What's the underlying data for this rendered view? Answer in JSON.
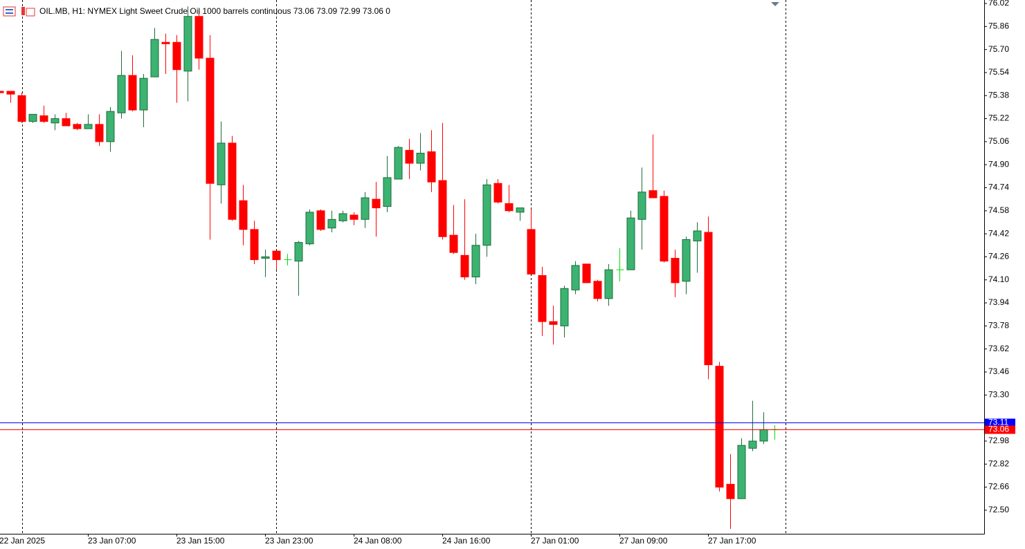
{
  "chart_data": {
    "type": "candlestick",
    "title": "OIL.MB, H1:  NYMEX Light Sweet Crude Oil 1000 barrels continuous  73.06 73.09 72.99 73.06  0",
    "categories": [
      "22 Jan 2025",
      null,
      null,
      null,
      null,
      null,
      null,
      null,
      "23 Jan 07:00",
      null,
      null,
      null,
      null,
      null,
      null,
      null,
      "23 Jan 15:00",
      null,
      null,
      null,
      null,
      null,
      null,
      null,
      "23 Jan 23:00",
      null,
      null,
      null,
      null,
      null,
      null,
      null,
      "24 Jan 08:00",
      null,
      null,
      null,
      null,
      null,
      null,
      null,
      "24 Jan 16:00",
      null,
      null,
      null,
      null,
      null,
      null,
      null,
      "27 Jan 01:00",
      null,
      null,
      null,
      null,
      null,
      null,
      null,
      "27 Jan 09:00",
      null,
      null,
      null,
      null,
      null,
      null,
      null,
      "27 Jan 17:00",
      null,
      null,
      null,
      null,
      null,
      null
    ],
    "open": [
      75.41,
      75.41,
      75.38,
      75.2,
      75.24,
      75.19,
      75.22,
      75.18,
      75.15,
      75.18,
      75.06,
      75.26,
      75.52,
      75.28,
      75.51,
      75.75,
      75.75,
      75.55,
      75.93,
      75.64,
      74.76,
      75.05,
      74.65,
      74.45,
      74.25,
      74.3,
      74.24,
      74.23,
      74.35,
      74.58,
      74.46,
      74.51,
      74.55,
      74.52,
      74.66,
      74.61,
      74.8,
      75.0,
      74.91,
      74.99,
      74.79,
      74.41,
      74.27,
      74.12,
      74.34,
      74.77,
      74.63,
      74.57,
      74.45,
      74.13,
      73.81,
      73.78,
      74.03,
      74.21,
      74.09,
      73.97,
      74.17,
      74.17,
      74.52,
      74.72,
      74.68,
      74.25,
      74.09,
      74.37,
      74.43,
      73.5,
      72.68,
      72.58,
      72.93,
      72.98,
      73.06
    ],
    "high": [
      75.41,
      75.41,
      75.4,
      75.25,
      75.31,
      75.25,
      75.26,
      75.19,
      75.25,
      75.25,
      75.3,
      75.69,
      75.66,
      75.53,
      75.85,
      75.81,
      75.8,
      76.0,
      75.97,
      75.8,
      75.2,
      75.1,
      74.76,
      74.51,
      74.31,
      74.3,
      74.28,
      74.37,
      74.59,
      74.59,
      74.58,
      74.58,
      74.57,
      74.71,
      74.78,
      74.96,
      75.03,
      75.08,
      75.12,
      75.14,
      75.19,
      74.62,
      74.66,
      74.42,
      74.8,
      74.8,
      74.76,
      74.6,
      74.59,
      74.19,
      73.92,
      74.06,
      74.23,
      74.21,
      74.1,
      74.21,
      74.32,
      74.58,
      74.88,
      75.11,
      74.72,
      74.31,
      74.4,
      74.5,
      74.54,
      73.53,
      72.89,
      73.0,
      73.26,
      73.18,
      73.09
    ],
    "low": [
      75.4,
      75.33,
      75.19,
      75.19,
      75.19,
      75.14,
      75.17,
      75.14,
      75.15,
      75.03,
      74.99,
      75.22,
      75.27,
      75.16,
      75.51,
      75.53,
      75.33,
      75.34,
      75.56,
      74.38,
      74.63,
      74.51,
      74.34,
      74.21,
      74.12,
      74.17,
      74.2,
      73.99,
      74.34,
      74.44,
      74.43,
      74.5,
      74.48,
      74.46,
      74.4,
      74.57,
      74.8,
      74.8,
      74.86,
      74.71,
      74.38,
      74.28,
      74.1,
      74.07,
      74.26,
      74.63,
      74.57,
      74.51,
      74.14,
      73.71,
      73.65,
      73.7,
      74.0,
      74.08,
      73.95,
      73.92,
      74.09,
      74.17,
      74.31,
      74.67,
      74.22,
      73.98,
      74.0,
      74.15,
      73.41,
      72.63,
      72.37,
      72.58,
      72.91,
      72.96,
      72.99
    ],
    "close": [
      75.4,
      75.39,
      75.2,
      75.25,
      75.2,
      75.22,
      75.17,
      75.15,
      75.18,
      75.06,
      75.27,
      75.52,
      75.28,
      75.5,
      75.77,
      75.74,
      75.56,
      75.93,
      75.64,
      74.77,
      75.05,
      74.52,
      74.45,
      74.24,
      74.26,
      74.24,
      74.24,
      74.36,
      74.57,
      74.45,
      74.52,
      74.56,
      74.52,
      74.67,
      74.6,
      74.81,
      75.02,
      74.91,
      74.98,
      74.78,
      74.4,
      74.29,
      74.12,
      74.34,
      74.76,
      74.64,
      74.58,
      74.6,
      74.14,
      73.81,
      73.79,
      74.04,
      74.2,
      74.08,
      73.97,
      74.17,
      74.17,
      74.53,
      74.71,
      74.67,
      74.23,
      74.08,
      74.38,
      74.44,
      73.51,
      72.66,
      72.58,
      72.95,
      72.98,
      73.06,
      73.06
    ],
    "up_color": "#3cb371",
    "up_edge_color": "#1d6b3a",
    "down_color": "#ff0000",
    "doji_color": "#00e000",
    "ylim": [
      72.336,
      76.044
    ],
    "yticks": [
      76.02,
      75.86,
      {
        "value": 75.7,
        "label": "75.70"
      },
      75.54,
      75.38,
      75.22,
      75.06,
      {
        "value": 74.9,
        "label": "74.90"
      },
      74.74,
      74.58,
      74.42,
      74.26,
      {
        "value": 74.1,
        "label": "74.10"
      },
      73.94,
      73.78,
      73.62,
      73.46,
      {
        "value": 73.3,
        "label": "73.30"
      },
      72.98,
      72.82,
      72.66,
      {
        "value": 72.5,
        "label": "72.50"
      }
    ],
    "price_lines": [
      {
        "value": 73.11,
        "color": "#0000ff"
      },
      {
        "value": 73.06,
        "color": "#ff0000"
      }
    ]
  }
}
